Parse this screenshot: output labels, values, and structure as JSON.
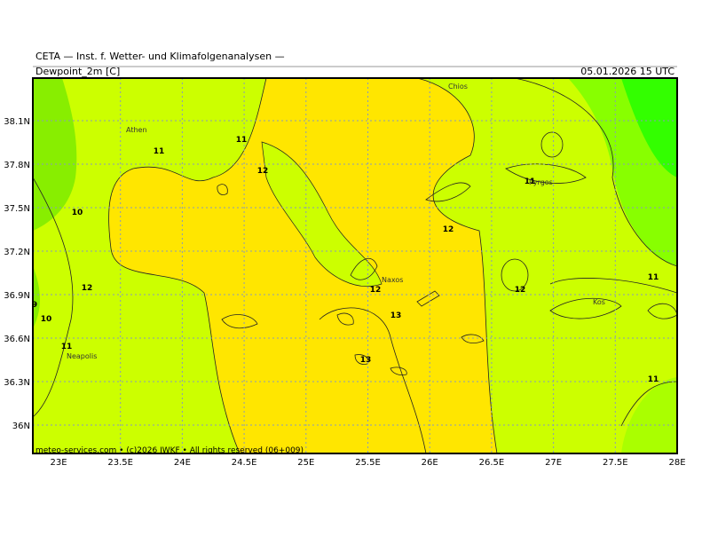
{
  "header": {
    "institute": "CETA — Inst. f. Wetter- und Klimafolgenanalysen —",
    "field": "Dewpoint_2m [C]",
    "valid_time": "05.01.2026 15 UTC"
  },
  "axes": {
    "lon_labels": [
      "23E",
      "23.5E",
      "24E",
      "24.5E",
      "25E",
      "25.5E",
      "26E",
      "26.5E",
      "27E",
      "27.5E",
      "28E"
    ],
    "lat_labels": [
      "38.1N",
      "37.8N",
      "37.5N",
      "37.2N",
      "36.9N",
      "36.6N",
      "36.3N",
      "36N"
    ]
  },
  "places": [
    "Athen",
    "Chios",
    "Pyrgos",
    "Naxos",
    "Kos",
    "Neapolis"
  ],
  "contour_labels": [
    "11",
    "11",
    "12",
    "10",
    "12",
    "9",
    "10",
    "11",
    "12",
    "12",
    "13",
    "13",
    "11",
    "12",
    "11",
    "11"
  ],
  "footer": "meteo-services.com • (c)2026 IWKF • All rights reserved (06+009)"
}
